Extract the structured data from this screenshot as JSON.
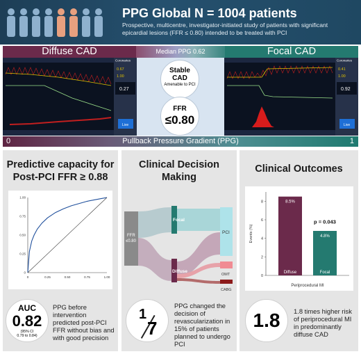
{
  "header": {
    "title": "PPG Global N = 1004 patients",
    "subtitle": "Prospective, multicentre, investigator-initiated study of patients with significant epicardial lesions (FFR ≤ 0.80) intended to be treated with PCI",
    "people_icon": "people-group-icon"
  },
  "top_band": {
    "diffuse_label": "Diffuse CAD",
    "median_label": "Median PPG 0.62",
    "focal_label": "Focal CAD",
    "stable_line1": "Stable",
    "stable_line2": "CAD",
    "stable_line3": "Amenable to PCI",
    "ffr_line1": "FFR",
    "ffr_line2": "≤0.80",
    "ppg_min": "0",
    "ppg_label": "Pullback Pressure Gradient (PPG)",
    "ppg_max": "1"
  },
  "monitor_left": {
    "header": "Coronaries",
    "val1": "0.67",
    "val2": "1.00",
    "val3": "0.27",
    "live": "Live"
  },
  "monitor_right": {
    "header": "Coronaries",
    "val1": "0.41",
    "val2": "1.00",
    "val3": "0.92",
    "live": "Live"
  },
  "colors": {
    "diffuse": "#6b2a4b",
    "focal": "#247a70",
    "header_bg": "#25506e"
  },
  "panels": {
    "predictive": {
      "title_line1": "Predictive capacity for",
      "title_line2": "Post-PCI FFR ≥ 0.88",
      "auc_label": "AUC",
      "auc_value": "0.82",
      "auc_ci_line1": "(95% CI",
      "auc_ci_line2": "0.79 to 0.84)",
      "text_line1": "PPG before",
      "text_line2": "intervention",
      "text_line3": "predicted post-PCI",
      "text_line4": "FFR without bias and",
      "text_line5": "with good precision"
    },
    "decision": {
      "title_line1": "Clinical Decision",
      "title_line2": "Making",
      "sankey_ffr1": "FFR",
      "sankey_ffr2": "≤0.80",
      "sankey_focal": "Focal",
      "sankey_diffuse": "Diffuse",
      "sankey_pci": "PCI",
      "sankey_omt": "OMT",
      "sankey_cabg": "CABG",
      "frac_num": "1",
      "frac_den": "7",
      "text_line1": "PPG changed the",
      "text_line2": "decision of",
      "text_line3": "revascularization in",
      "text_line4": "15% of patients",
      "text_line5": "planned to undergo",
      "text_line6": "PCI"
    },
    "outcomes": {
      "title": "Clinical Outcomes",
      "ratio_value": "1.8",
      "text_line1": "1.8 times higher risk",
      "text_line2": "of periprocedural MI",
      "text_line3": "in predominantly",
      "text_line4": "diffuse CAD"
    }
  },
  "chart_data": [
    {
      "type": "line",
      "title": "",
      "xlabel": "",
      "ylabel": "",
      "xlim": [
        0,
        1
      ],
      "ylim": [
        0,
        1
      ],
      "x_ticks": [
        "0",
        "0.25",
        "0.50",
        "0.75",
        "1.00"
      ],
      "y_ticks": [
        "0",
        "0.25",
        "0.50",
        "0.75",
        "1.00"
      ],
      "series": [
        {
          "x": [
            0,
            0.02,
            0.05,
            0.08,
            0.12,
            0.18,
            0.25,
            0.35,
            0.45,
            0.55,
            0.65,
            0.75,
            0.85,
            0.95,
            1.0
          ],
          "y": [
            0,
            0.28,
            0.42,
            0.5,
            0.58,
            0.66,
            0.73,
            0.8,
            0.85,
            0.89,
            0.92,
            0.95,
            0.97,
            0.99,
            1.0
          ]
        },
        {
          "x": [
            0,
            1
          ],
          "y": [
            0,
            1
          ]
        }
      ]
    },
    {
      "type": "bar",
      "title": "",
      "xlabel": "Periprocedural MI",
      "ylabel": "Events (%)",
      "ylim": [
        0,
        9
      ],
      "y_ticks": [
        "0",
        "2",
        "4",
        "6",
        "8"
      ],
      "categories": [
        "Diffuse",
        "Focal"
      ],
      "values": [
        8.5,
        4.8
      ],
      "value_labels": [
        "8.5%",
        "4.8%"
      ],
      "colors": [
        "#6b2a4b",
        "#247a70"
      ],
      "annotation": "p = 0.043"
    }
  ]
}
